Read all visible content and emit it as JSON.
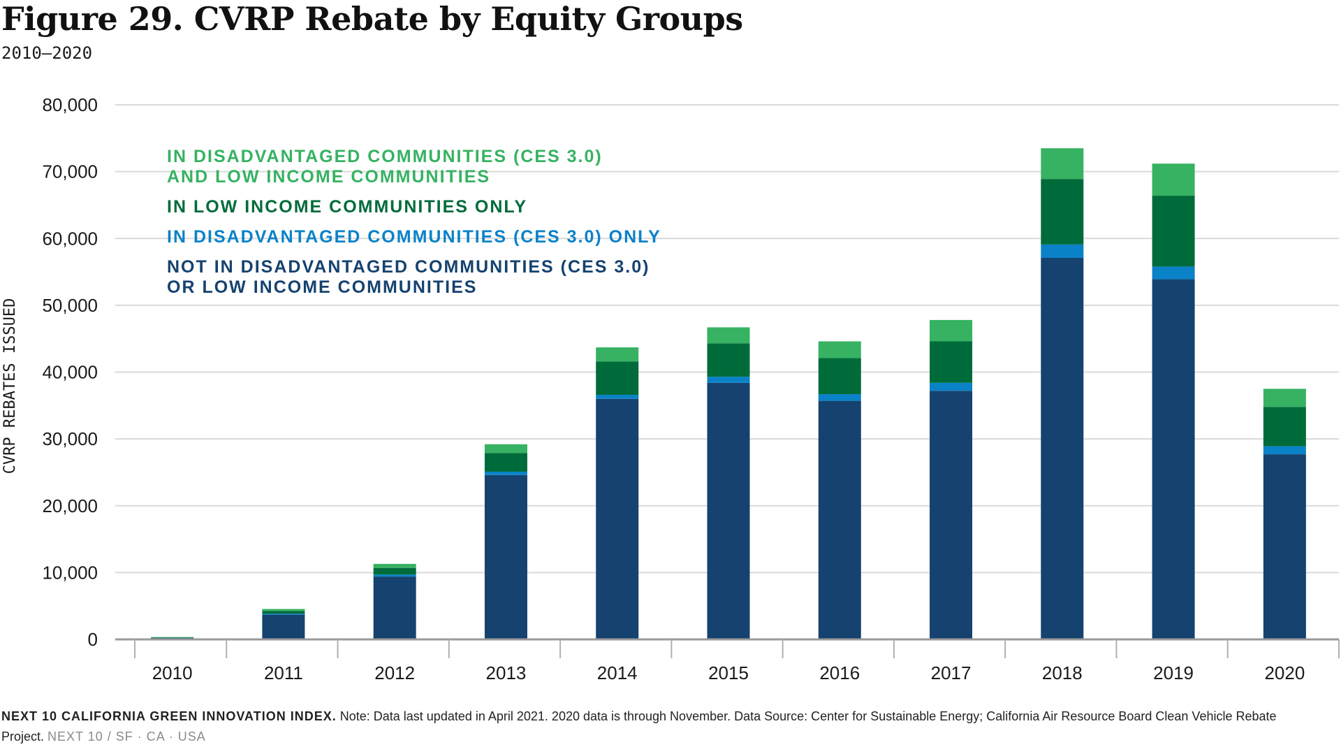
{
  "title": "Figure 29. CVRP Rebate by Equity Groups",
  "subtitle": "2010–2020",
  "footer": {
    "brand": "NEXT 10 CALIFORNIA GREEN INNOVATION INDEX.",
    "note": "Note: Data last updated in April 2021. 2020 data is through November. Data Source: Center for Sustainable Energy; California Air Resource Board Clean Vehicle Rebate Project.",
    "tag": "NEXT 10  /  SF · CA · USA"
  },
  "chart_data": {
    "type": "bar",
    "stacked": true,
    "categories": [
      "2010",
      "2011",
      "2012",
      "2013",
      "2014",
      "2015",
      "2016",
      "2017",
      "2018",
      "2019",
      "2020"
    ],
    "ylabel": "CVRP REBATES ISSUED",
    "ylim": [
      0,
      80000
    ],
    "yticks": [
      0,
      10000,
      20000,
      30000,
      40000,
      50000,
      60000,
      70000,
      80000
    ],
    "ytick_labels": [
      "0",
      "10,000",
      "20,000",
      "30,000",
      "40,000",
      "50,000",
      "60,000",
      "70,000",
      "80,000"
    ],
    "grid": true,
    "legend_position": "top-left",
    "series": [
      {
        "name": "NOT IN DISADVANTAGED COMMUNITIES (CES 3.0) OR LOW INCOME COMMUNITIES",
        "legend_lines": [
          "NOT IN DISADVANTAGED COMMUNITIES (CES 3.0)",
          "OR LOW INCOME COMMUNITIES"
        ],
        "color": "#15426f",
        "values": [
          200,
          3700,
          9400,
          24600,
          36000,
          38400,
          35700,
          37200,
          57100,
          53900,
          27700
        ]
      },
      {
        "name": "IN DISADVANTAGED COMMUNITIES (CES 3.0) ONLY",
        "legend_lines": [
          "IN DISADVANTAGED COMMUNITIES (CES 3.0) ONLY"
        ],
        "color": "#0a82c8",
        "values": [
          20,
          150,
          300,
          500,
          600,
          900,
          1000,
          1200,
          2000,
          1900,
          1200
        ]
      },
      {
        "name": "IN LOW INCOME COMMUNITIES ONLY",
        "legend_lines": [
          "IN LOW INCOME COMMUNITIES ONLY"
        ],
        "color": "#006b3a",
        "values": [
          80,
          400,
          1000,
          2800,
          5000,
          5000,
          5400,
          6200,
          9800,
          10600,
          5900
        ]
      },
      {
        "name": "IN DISADVANTAGED COMMUNITIES (CES 3.0) AND LOW INCOME COMMUNITIES",
        "legend_lines": [
          "IN DISADVANTAGED COMMUNITIES (CES 3.0)",
          "AND LOW INCOME COMMUNITIES"
        ],
        "color": "#36b262",
        "values": [
          50,
          300,
          600,
          1300,
          2100,
          2400,
          2500,
          3200,
          4600,
          4800,
          2700
        ]
      }
    ]
  }
}
